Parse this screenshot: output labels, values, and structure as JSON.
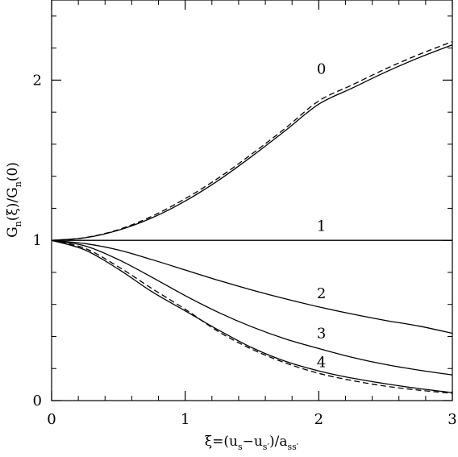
{
  "chart_data": {
    "type": "line",
    "title": "",
    "xlabel": "ξ=(u_s−u_s′)/a_ss′",
    "ylabel": "G_n(ξ)/G_n(0)",
    "xlim": [
      0,
      3
    ],
    "ylim": [
      0,
      2.5
    ],
    "x_ticks": [
      0,
      1,
      2,
      3
    ],
    "x_tick_labels": [
      "0",
      "1",
      "2",
      "3"
    ],
    "y_ticks": [
      0,
      1,
      2
    ],
    "y_tick_labels": [
      "0",
      "1",
      "2"
    ],
    "x_minor_step": 0.2,
    "y_minor_step": 0.2,
    "grid": false,
    "legend": "none",
    "x": [
      0,
      0.25,
      0.5,
      0.75,
      1.0,
      1.25,
      1.5,
      1.75,
      2.0,
      2.25,
      2.5,
      2.75,
      3.0
    ],
    "series": [
      {
        "label": "0",
        "label_at": [
          2.02,
          2.04
        ],
        "style": "solid",
        "values": [
          1.0,
          1.016,
          1.063,
          1.14,
          1.245,
          1.375,
          1.525,
          1.685,
          1.85,
          1.95,
          2.05,
          2.14,
          2.22
        ]
      },
      {
        "label": "",
        "style": "dashed",
        "values": [
          1.0,
          1.017,
          1.067,
          1.15,
          1.26,
          1.39,
          1.54,
          1.7,
          1.87,
          1.97,
          2.07,
          2.16,
          2.24
        ]
      },
      {
        "label": "1",
        "label_at": [
          2.02,
          1.06
        ],
        "style": "solid",
        "values": [
          1.0,
          1.0,
          1.0,
          1.0,
          1.0,
          1.0,
          1.0,
          1.0,
          1.0,
          1.0,
          1.0,
          1.0,
          1.0
        ]
      },
      {
        "label": "2",
        "label_at": [
          2.02,
          0.64
        ],
        "style": "solid",
        "values": [
          1.0,
          0.98,
          0.94,
          0.88,
          0.815,
          0.75,
          0.69,
          0.635,
          0.585,
          0.54,
          0.5,
          0.465,
          0.42
        ]
      },
      {
        "label": "3",
        "label_at": [
          2.02,
          0.39
        ],
        "style": "solid",
        "values": [
          1.0,
          0.965,
          0.88,
          0.77,
          0.655,
          0.55,
          0.46,
          0.385,
          0.325,
          0.27,
          0.225,
          0.19,
          0.16
        ]
      },
      {
        "label": "4",
        "label_at": [
          2.02,
          0.21
        ],
        "style": "solid",
        "values": [
          1.0,
          0.94,
          0.82,
          0.68,
          0.56,
          0.44,
          0.33,
          0.245,
          0.185,
          0.14,
          0.105,
          0.075,
          0.05
        ]
      },
      {
        "label": "",
        "style": "dashed",
        "values": [
          1.0,
          0.95,
          0.835,
          0.7,
          0.57,
          0.43,
          0.32,
          0.235,
          0.17,
          0.125,
          0.09,
          0.065,
          0.045
        ]
      }
    ]
  }
}
